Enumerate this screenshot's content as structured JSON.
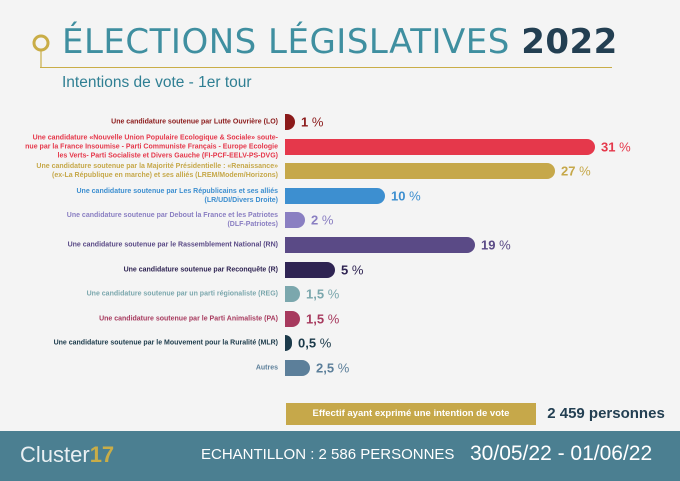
{
  "header": {
    "title_main": "ÉLECTIONS LÉGISLATIVES",
    "title_year": "2022",
    "subtitle": "Intentions de vote - 1er tour"
  },
  "chart_data": {
    "type": "bar",
    "orientation": "horizontal",
    "xlim": [
      0,
      33
    ],
    "unit": "%",
    "categories": [
      "Une candidature soutenue par Lutte Ouvrière (LO)",
      "Une candidature «Nouvelle Union Populaire Ecologique & Sociale» soutenue par la France Insoumise - Parti Communiste Français - Europe Ecologie les Verts- Parti Socialiste et Divers Gauche (FI-PCF-EELV-PS-DVG)",
      "Une candidature soutenue par la Majorité Présidentielle : «Renaissance» (ex-La République en marche) et ses alliés (LREM/Modem/Horizons)",
      "Une candidature soutenue par Les Républicains et ses alliés (LR/UDI/Divers Droite)",
      "Une candidature soutenue par Debout la France et les Patriotes (DLF-Patriotes)",
      "Une candidature soutenue par le Rassemblement National (RN)",
      "Une candidature soutenue par Reconquête (R)",
      "Une candidature soutenue par un parti régionaliste (REG)",
      "Une candidature soutenue par le Parti Animaliste (PA)",
      "Une candidature soutenue par le Mouvement pour la Ruralité (MLR)",
      "Autres"
    ],
    "label_lines": [
      [
        "Une candidature soutenue par Lutte Ouvrière (LO)"
      ],
      [
        "Une candidature «Nouvelle Union Populaire Ecologique & Sociale» soute-",
        "nue par la France Insoumise - Parti Communiste Français - Europe Ecologie",
        "les Verts- Parti Socialiste et Divers Gauche (FI-PCF-EELV-PS-DVG)"
      ],
      [
        "Une candidature soutenue par la Majorité Présidentielle : «Renaissance»",
        "(ex-La République en marche) et ses alliés (LREM/Modem/Horizons)"
      ],
      [
        "Une candidature soutenue par Les Républicains et ses alliés",
        "(LR/UDI/Divers Droite)"
      ],
      [
        "Une candidature soutenue par Debout la France et les Patriotes",
        "(DLF-Patriotes)"
      ],
      [
        "Une candidature soutenue par le Rassemblement National (RN)"
      ],
      [
        "Une candidature soutenue par Reconquête (R)"
      ],
      [
        "Une candidature soutenue par un parti régionaliste (REG)"
      ],
      [
        "Une candidature soutenue par le Parti Animaliste (PA)"
      ],
      [
        "Une candidature soutenue par le Mouvement pour la Ruralité (MLR)"
      ],
      [
        "Autres"
      ]
    ],
    "values": [
      1,
      31,
      27,
      10,
      2,
      19,
      5,
      1.5,
      1.5,
      0.5,
      2.5
    ],
    "value_labels": [
      "1",
      "31",
      "27",
      "10",
      "2",
      "19",
      "5",
      "1,5",
      "1,5",
      "0,5",
      "2,5"
    ],
    "colors": [
      "#8b1a1a",
      "#e5384b",
      "#c6a84a",
      "#3d8fd0",
      "#8a7fc2",
      "#5a4a86",
      "#2f2453",
      "#7ba7ad",
      "#a73a5e",
      "#1b3a4a",
      "#5c7f9a"
    ],
    "label_colors": [
      "#8b1a1a",
      "#e5384b",
      "#c6a84a",
      "#3d8fd0",
      "#8a7fc2",
      "#5a4a86",
      "#2f2453",
      "#7ba7ad",
      "#a73a5e",
      "#1b3a4a",
      "#5c7f9a"
    ]
  },
  "summary": {
    "label": "Effectif ayant exprimé une intention de vote",
    "value": "2 459 personnes"
  },
  "footer": {
    "brand_text": "Cluster",
    "brand_number": "17",
    "sample": "ECHANTILLON : 2 586 PERSONNES",
    "dates": "30/05/22 - 01/06/22"
  }
}
